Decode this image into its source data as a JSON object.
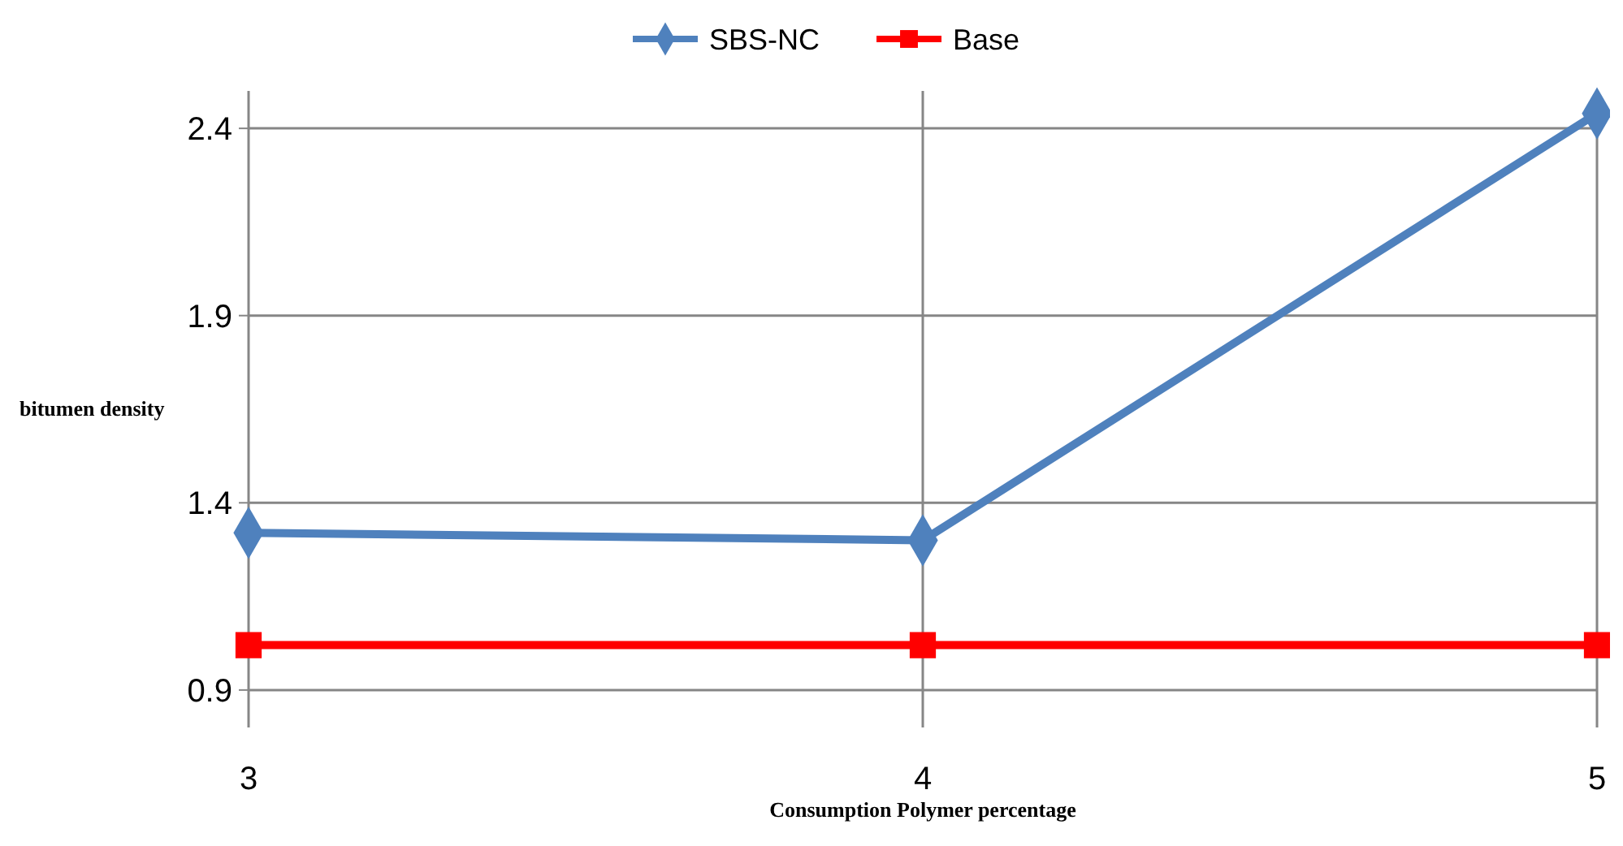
{
  "chart_data": {
    "type": "line",
    "xlabel": "Consumption Polymer percentage",
    "ylabel": "bitumen density",
    "x": [
      3,
      4,
      5
    ],
    "xlim": [
      3,
      5
    ],
    "xticks": [
      3,
      4,
      5
    ],
    "ylim": [
      0.8,
      2.5
    ],
    "yticks": [
      0.9,
      1.4,
      1.9,
      2.4
    ],
    "grid": true,
    "legend": "top",
    "series": [
      {
        "name": "SBS-NC",
        "color": "#4f81bd",
        "values": [
          1.32,
          1.3,
          2.44
        ],
        "marker": "diamond"
      },
      {
        "name": "Base",
        "color": "#ff0000",
        "values": [
          1.02,
          1.02,
          1.02
        ],
        "marker": "square"
      }
    ]
  }
}
